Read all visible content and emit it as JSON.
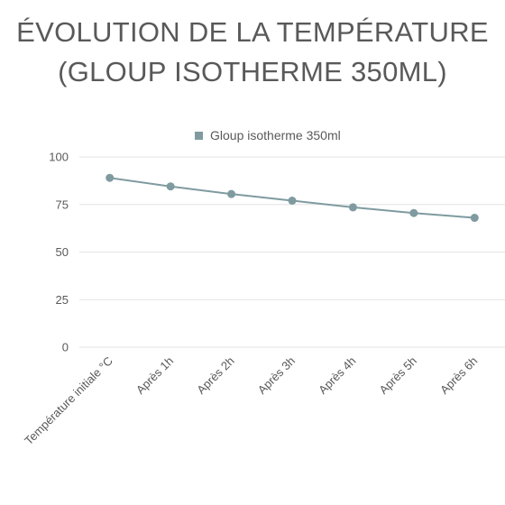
{
  "chart_data": {
    "type": "line",
    "title_lines": [
      "ÉVOLUTION DE LA TEMPÉRATURE",
      "(GLOUP ISOTHERME 350ML)"
    ],
    "categories": [
      "Température initiale °C",
      "Après 1h",
      "Après 2h",
      "Après 3h",
      "Après 4h",
      "Après 5h",
      "Après 6h"
    ],
    "series": [
      {
        "name": "Gloup isotherme 350ml",
        "color": "#7f9ba0",
        "values": [
          89,
          84.5,
          80.5,
          77,
          73.5,
          70.5,
          68
        ]
      }
    ],
    "ylim": [
      0,
      100
    ],
    "yticks": [
      0,
      25,
      50,
      75,
      100
    ],
    "grid": true,
    "legend_position": "top"
  }
}
